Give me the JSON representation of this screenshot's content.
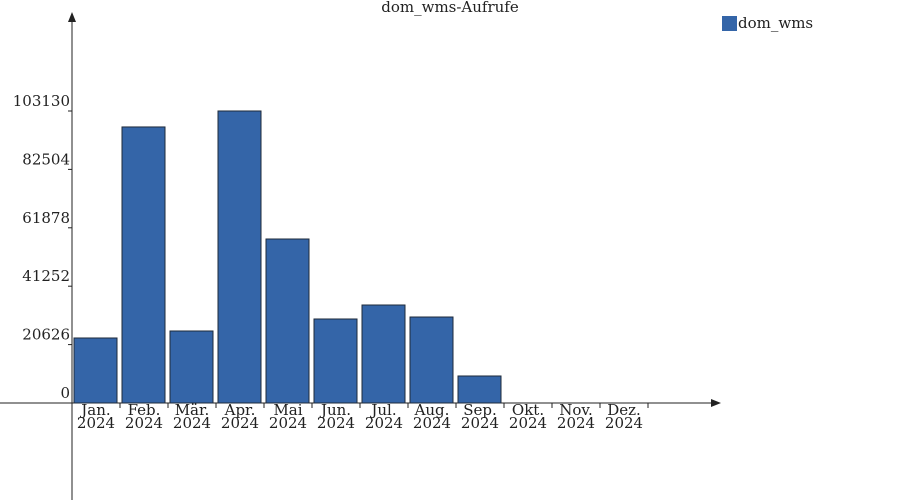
{
  "chart_data": {
    "type": "bar",
    "title": "dom_wms-Aufrufe",
    "categories": [
      "Jan. 2024",
      "Feb. 2024",
      "Mär. 2024",
      "Apr. 2024",
      "Mai 2024",
      "Jun. 2024",
      "Jul. 2024",
      "Aug. 2024",
      "Sep. 2024",
      "Okt. 2024",
      "Nov. 2024",
      "Dez. 2024"
    ],
    "series": [
      {
        "name": "dom_wms",
        "color": "#3465a8",
        "values": [
          22960,
          97490,
          25430,
          103130,
          57920,
          29670,
          34610,
          30370,
          9540,
          0,
          0,
          0
        ]
      }
    ],
    "ylim": [
      0,
      135970
    ],
    "yticks": [
      0,
      20626,
      41252,
      61878,
      82504,
      103130
    ]
  }
}
